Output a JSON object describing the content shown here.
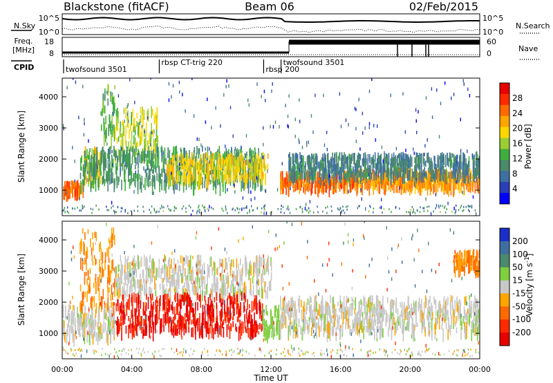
{
  "header": {
    "station": "Blackstone (fitACF)",
    "beam": "Beam 06",
    "date": "02/Feb/2015"
  },
  "top_panels": {
    "nsky_label": "N.Sky",
    "nsearch_label": "N.Search",
    "nsky_ticks": [
      "10^5",
      "10^0"
    ],
    "nsearch_ticks": [
      "10^5",
      "10^0"
    ],
    "freq_label": "Freq.",
    "freq_unit": "[MHz]",
    "freq_ticks": [
      "18",
      "8"
    ],
    "nave_label": "Nave",
    "nave_ticks": [
      "60",
      "0"
    ],
    "cpid_label": "CPID"
  },
  "cpid_segments": [
    {
      "start_hr": 0.0,
      "label": "twofsound 3501"
    },
    {
      "start_hr": 5.5,
      "label": "rbsp CT-trig 220"
    },
    {
      "start_hr": 11.5,
      "label": "rbsp 200"
    },
    {
      "start_hr": 12.5,
      "label": "twofsound 3501"
    }
  ],
  "chart_data": [
    {
      "type": "heatmap",
      "name": "power",
      "ylabel": "Slant Range [km]",
      "xlabel": "",
      "xlim": [
        0,
        24
      ],
      "ylim": [
        180,
        4600
      ],
      "yticks": [
        1000,
        2000,
        3000,
        4000
      ],
      "colorbar": {
        "label": "Power [dB]",
        "ticks": [
          "28",
          "24",
          "20",
          "16",
          "12",
          "8",
          "4"
        ],
        "colors": [
          "#0000ff",
          "#2a3fb8",
          "#3f6fa0",
          "#4b8a6c",
          "#3fae3f",
          "#9acd32",
          "#ffd700",
          "#ffa500",
          "#ff6a00",
          "#ff2a00",
          "#e60000"
        ]
      },
      "bands": [
        {
          "x0": 0.0,
          "x1": 1.2,
          "y0": 850,
          "y1": 1200,
          "v": 24
        },
        {
          "x0": 1.2,
          "x1": 2.2,
          "y0": 1300,
          "y1": 2300,
          "v": 18
        },
        {
          "x0": 2.2,
          "x1": 3.0,
          "y0": 2600,
          "y1": 4300,
          "v": 12
        },
        {
          "x0": 3.0,
          "x1": 5.5,
          "y0": 2000,
          "y1": 3600,
          "v": 16
        },
        {
          "x0": 1.0,
          "x1": 11.5,
          "y0": 1100,
          "y1": 2300,
          "v": 10
        },
        {
          "x0": 6.0,
          "x1": 11.8,
          "y0": 1300,
          "y1": 2100,
          "v": 18
        },
        {
          "x0": 12.5,
          "x1": 17.0,
          "y0": 1050,
          "y1": 1500,
          "v": 24
        },
        {
          "x0": 17.0,
          "x1": 24.0,
          "y0": 1050,
          "y1": 1600,
          "v": 22
        },
        {
          "x0": 13.0,
          "x1": 24.0,
          "y0": 1400,
          "y1": 2100,
          "v": 8
        }
      ]
    },
    {
      "type": "heatmap",
      "name": "velocity",
      "ylabel": "Slant Range [km]",
      "xlabel": "Time UT",
      "xlim": [
        0,
        24
      ],
      "ylim": [
        180,
        4600
      ],
      "yticks": [
        1000,
        2000,
        3000,
        4000
      ],
      "xticks": [
        "00:00",
        "04:00",
        "08:00",
        "12:00",
        "16:00",
        "20:00",
        "00:00"
      ],
      "colorbar": {
        "label": "Velocity [m s^-1]",
        "ticks": [
          "200",
          "100",
          "50",
          "15",
          "-15",
          "-50",
          "-100",
          "-200"
        ],
        "colors": [
          "#1a2ec8",
          "#3f6fa0",
          "#4b8a6c",
          "#7fcf3f",
          "#c8c8c8",
          "#ffa500",
          "#ff6a00",
          "#ff2a00",
          "#e60000"
        ]
      },
      "bands": [
        {
          "x0": 0.0,
          "x1": 3.0,
          "y0": 850,
          "y1": 1800,
          "v": 0
        },
        {
          "x0": 1.0,
          "x1": 3.0,
          "y0": 1800,
          "y1": 4300,
          "v": -50
        },
        {
          "x0": 3.0,
          "x1": 12.0,
          "y0": 2200,
          "y1": 3400,
          "v": 0
        },
        {
          "x0": 3.0,
          "x1": 11.5,
          "y0": 1000,
          "y1": 2200,
          "v": -200
        },
        {
          "x0": 11.5,
          "x1": 12.5,
          "y0": 900,
          "y1": 1800,
          "v": 30
        },
        {
          "x0": 12.5,
          "x1": 24.0,
          "y0": 1000,
          "y1": 2100,
          "v": 0
        },
        {
          "x0": 22.5,
          "x1": 24.0,
          "y0": 3000,
          "y1": 3600,
          "v": -50
        }
      ]
    }
  ]
}
